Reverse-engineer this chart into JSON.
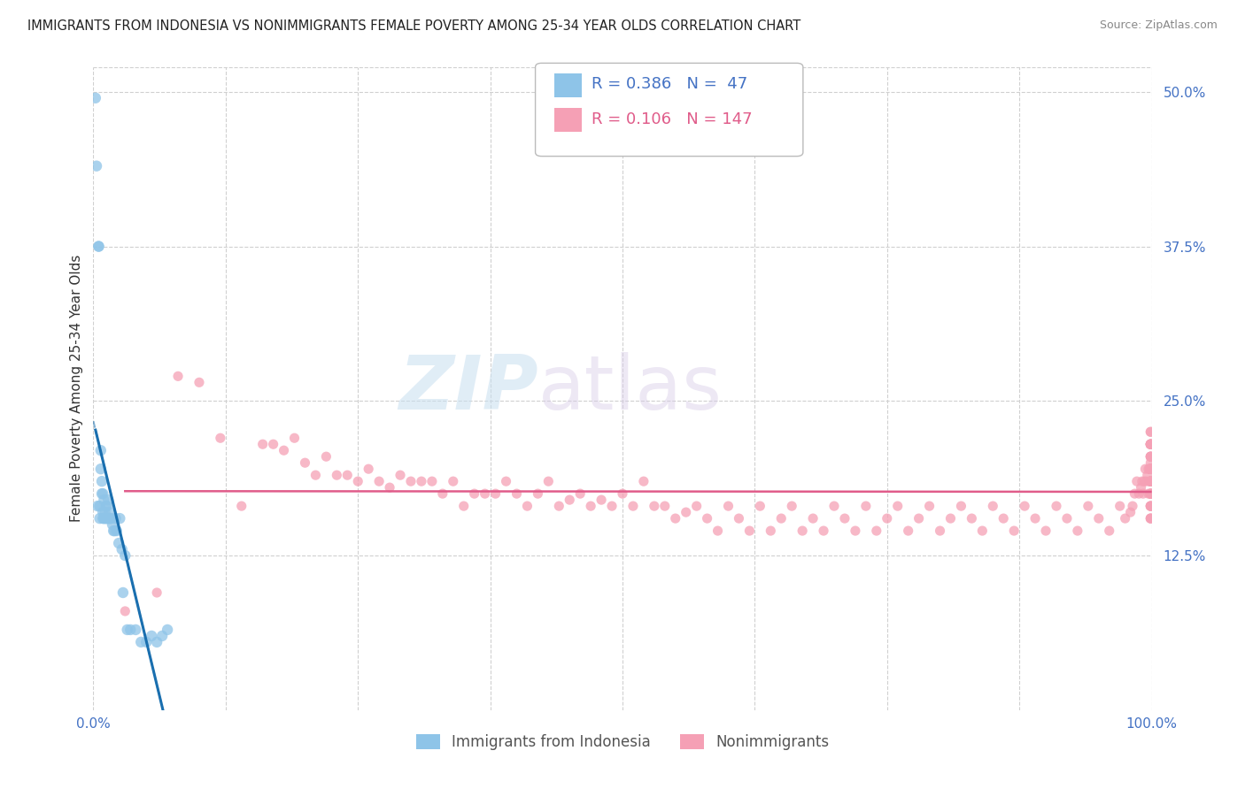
{
  "title": "IMMIGRANTS FROM INDONESIA VS NONIMMIGRANTS FEMALE POVERTY AMONG 25-34 YEAR OLDS CORRELATION CHART",
  "source": "Source: ZipAtlas.com",
  "ylabel": "Female Poverty Among 25-34 Year Olds",
  "xlim": [
    0,
    1.0
  ],
  "ylim": [
    0,
    0.52
  ],
  "xticks": [
    0.0,
    0.125,
    0.25,
    0.375,
    0.5,
    0.625,
    0.75,
    0.875,
    1.0
  ],
  "xticklabels": [
    "0.0%",
    "",
    "",
    "",
    "",
    "",
    "",
    "",
    "100.0%"
  ],
  "yticks_right": [
    0.125,
    0.25,
    0.375,
    0.5
  ],
  "yticklabels_right": [
    "12.5%",
    "25.0%",
    "37.5%",
    "50.0%"
  ],
  "legend_r1": "0.386",
  "legend_n1": " 47",
  "legend_r2": "0.106",
  "legend_n2": "147",
  "color_blue": "#8ec4e8",
  "color_pink": "#f5a0b5",
  "line_blue": "#1a6faf",
  "line_pink": "#e05c8a",
  "legend_text_blue": "#4472c4",
  "legend_text_pink": "#e05c8a",
  "watermark_zip": "ZIP",
  "watermark_atlas": "atlas",
  "background_color": "#ffffff",
  "grid_color": "#d0d0d0",
  "blue_x": [
    0.002,
    0.003,
    0.004,
    0.005,
    0.005,
    0.006,
    0.006,
    0.007,
    0.007,
    0.008,
    0.008,
    0.009,
    0.009,
    0.009,
    0.01,
    0.01,
    0.011,
    0.011,
    0.012,
    0.012,
    0.013,
    0.013,
    0.014,
    0.014,
    0.015,
    0.015,
    0.016,
    0.017,
    0.018,
    0.019,
    0.02,
    0.021,
    0.022,
    0.024,
    0.025,
    0.027,
    0.028,
    0.03,
    0.032,
    0.035,
    0.04,
    0.045,
    0.05,
    0.055,
    0.06,
    0.065,
    0.07
  ],
  "blue_y": [
    0.495,
    0.44,
    0.165,
    0.375,
    0.375,
    0.165,
    0.155,
    0.195,
    0.21,
    0.185,
    0.175,
    0.16,
    0.155,
    0.175,
    0.155,
    0.17,
    0.16,
    0.155,
    0.155,
    0.165,
    0.155,
    0.165,
    0.155,
    0.17,
    0.155,
    0.16,
    0.155,
    0.155,
    0.15,
    0.145,
    0.145,
    0.155,
    0.145,
    0.135,
    0.155,
    0.13,
    0.095,
    0.125,
    0.065,
    0.065,
    0.065,
    0.055,
    0.055,
    0.06,
    0.055,
    0.06,
    0.065
  ],
  "pink_x": [
    0.03,
    0.06,
    0.08,
    0.1,
    0.12,
    0.14,
    0.16,
    0.17,
    0.18,
    0.19,
    0.2,
    0.21,
    0.22,
    0.23,
    0.24,
    0.25,
    0.26,
    0.27,
    0.28,
    0.29,
    0.3,
    0.31,
    0.32,
    0.33,
    0.34,
    0.35,
    0.36,
    0.37,
    0.38,
    0.39,
    0.4,
    0.41,
    0.42,
    0.43,
    0.44,
    0.45,
    0.46,
    0.47,
    0.48,
    0.49,
    0.5,
    0.51,
    0.52,
    0.53,
    0.54,
    0.55,
    0.56,
    0.57,
    0.58,
    0.59,
    0.6,
    0.61,
    0.62,
    0.63,
    0.64,
    0.65,
    0.66,
    0.67,
    0.68,
    0.69,
    0.7,
    0.71,
    0.72,
    0.73,
    0.74,
    0.75,
    0.76,
    0.77,
    0.78,
    0.79,
    0.8,
    0.81,
    0.82,
    0.83,
    0.84,
    0.85,
    0.86,
    0.87,
    0.88,
    0.89,
    0.9,
    0.91,
    0.92,
    0.93,
    0.94,
    0.95,
    0.96,
    0.97,
    0.975,
    0.98,
    0.982,
    0.984,
    0.986,
    0.988,
    0.99,
    0.991,
    0.992,
    0.993,
    0.994,
    0.995,
    0.996,
    0.997,
    0.997,
    0.998,
    0.998,
    0.999,
    0.999,
    0.999,
    0.999,
    0.999,
    0.999,
    0.999,
    0.999,
    0.999,
    0.999,
    0.999,
    0.999,
    0.999,
    0.999,
    0.999,
    0.999,
    0.999,
    0.999,
    0.999,
    0.999,
    0.999,
    0.999,
    0.999,
    0.999,
    0.999,
    0.999,
    0.999,
    0.999,
    0.999,
    0.999,
    0.999,
    0.999,
    0.999,
    0.999,
    0.999,
    0.999,
    0.999,
    0.999,
    0.999,
    0.999,
    0.999,
    0.999
  ],
  "pink_y": [
    0.08,
    0.095,
    0.27,
    0.265,
    0.22,
    0.165,
    0.215,
    0.215,
    0.21,
    0.22,
    0.2,
    0.19,
    0.205,
    0.19,
    0.19,
    0.185,
    0.195,
    0.185,
    0.18,
    0.19,
    0.185,
    0.185,
    0.185,
    0.175,
    0.185,
    0.165,
    0.175,
    0.175,
    0.175,
    0.185,
    0.175,
    0.165,
    0.175,
    0.185,
    0.165,
    0.17,
    0.175,
    0.165,
    0.17,
    0.165,
    0.175,
    0.165,
    0.185,
    0.165,
    0.165,
    0.155,
    0.16,
    0.165,
    0.155,
    0.145,
    0.165,
    0.155,
    0.145,
    0.165,
    0.145,
    0.155,
    0.165,
    0.145,
    0.155,
    0.145,
    0.165,
    0.155,
    0.145,
    0.165,
    0.145,
    0.155,
    0.165,
    0.145,
    0.155,
    0.165,
    0.145,
    0.155,
    0.165,
    0.155,
    0.145,
    0.165,
    0.155,
    0.145,
    0.165,
    0.155,
    0.145,
    0.165,
    0.155,
    0.145,
    0.165,
    0.155,
    0.145,
    0.165,
    0.155,
    0.16,
    0.165,
    0.175,
    0.185,
    0.175,
    0.18,
    0.185,
    0.175,
    0.185,
    0.195,
    0.185,
    0.19,
    0.195,
    0.175,
    0.185,
    0.195,
    0.175,
    0.185,
    0.195,
    0.195,
    0.2,
    0.205,
    0.215,
    0.195,
    0.205,
    0.215,
    0.195,
    0.205,
    0.215,
    0.175,
    0.165,
    0.185,
    0.195,
    0.215,
    0.195,
    0.185,
    0.215,
    0.185,
    0.215,
    0.165,
    0.155,
    0.175,
    0.195,
    0.215,
    0.185,
    0.175,
    0.225,
    0.165,
    0.155,
    0.185,
    0.205,
    0.195,
    0.175,
    0.165,
    0.225,
    0.185,
    0.155,
    0.195
  ]
}
